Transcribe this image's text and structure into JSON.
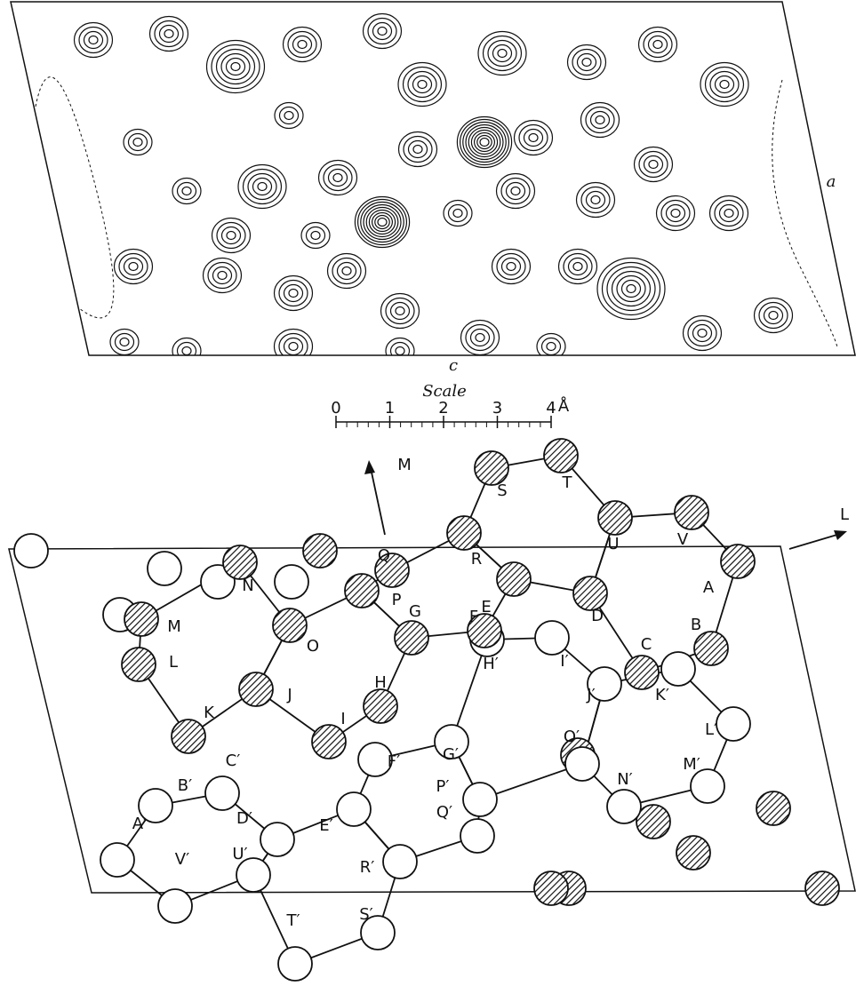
{
  "contour_map": {
    "axis_a": "a",
    "axis_c": "c"
  },
  "scale": {
    "title": "Scale",
    "ticks": [
      0,
      1,
      2,
      3,
      4
    ],
    "unit": "Å"
  },
  "projection": {
    "axis_m": "M",
    "axis_l": "L",
    "atoms_upper": [
      "A",
      "B",
      "C",
      "D",
      "E",
      "F",
      "G",
      "H",
      "I",
      "J",
      "K",
      "L",
      "M",
      "N",
      "O",
      "P",
      "Q",
      "R",
      "S",
      "T",
      "U",
      "V"
    ],
    "atoms_lower": [
      "A′",
      "B′",
      "C′",
      "D′",
      "E′",
      "F′",
      "G′",
      "H′",
      "I′",
      "J′",
      "K′",
      "L′",
      "M′",
      "N′",
      "O′",
      "P′",
      "Q′",
      "R′",
      "S′",
      "T′",
      "U′",
      "V′"
    ]
  }
}
